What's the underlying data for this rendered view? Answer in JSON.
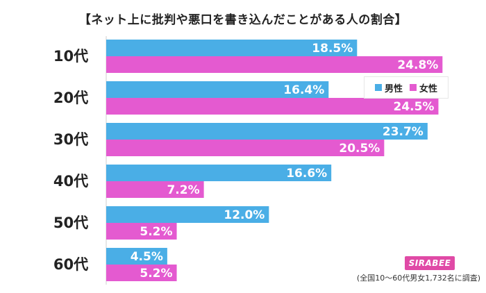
{
  "chart_data": {
    "type": "bar",
    "orientation": "horizontal",
    "title": "【ネット上に批判や悪口を書き込んだことがある人の割合】",
    "categories": [
      "10代",
      "20代",
      "30代",
      "40代",
      "50代",
      "60代"
    ],
    "series": [
      {
        "name": "男性",
        "color": "#4aaee6",
        "values": [
          18.5,
          16.4,
          23.7,
          16.6,
          12.0,
          4.5
        ],
        "labels": [
          "18.5%",
          "16.4%",
          "23.7%",
          "16.6%",
          "12.0%",
          "4.5%"
        ]
      },
      {
        "name": "女性",
        "color": "#e45ad0",
        "values": [
          24.8,
          24.5,
          20.5,
          7.2,
          5.2,
          5.2
        ],
        "labels": [
          "24.8%",
          "24.5%",
          "20.5%",
          "7.2%",
          "5.2%",
          "5.2%"
        ]
      }
    ],
    "xlim": [
      0,
      25.5
    ],
    "grid": false,
    "legend_position": "top-right",
    "unit": "%"
  },
  "logo_text": "SIRABEE",
  "footnote": "(全国10～60代男女1,732名に調査)"
}
